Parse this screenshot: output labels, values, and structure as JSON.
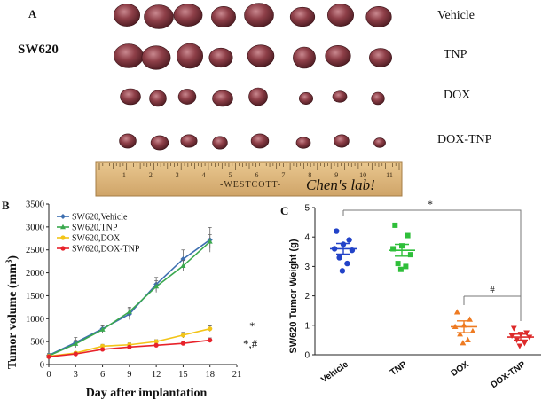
{
  "panel_a": {
    "letter": "A",
    "cell_line": "SW620",
    "groups": [
      "Vehicle",
      "TNP",
      "DOX",
      "DOX-TNP"
    ],
    "tumors_per_group": 8,
    "ruler": {
      "brand": "-WESTCOTT-",
      "handwriting": "Chen's lab!",
      "numbers": [
        "1",
        "2",
        "3",
        "4",
        "5",
        "6",
        "7",
        "8",
        "9",
        "10",
        "11"
      ]
    }
  },
  "panel_b": {
    "letter": "B",
    "legend": [
      "SW620,Vehicle",
      "SW620,TNP",
      "SW620,DOX",
      "SW620,DOX-TNP"
    ],
    "sig_top": "*",
    "sig_bottom": "*,#"
  },
  "panel_c": {
    "letter": "C",
    "sig_top": "*",
    "sig_bottom": "#"
  },
  "chart_data": [
    {
      "type": "line",
      "title": "",
      "xlabel": "Day after implantation",
      "ylabel": "Tumor volume (mm3)",
      "ylabel_main": "Tumor volume (mm",
      "ylabel_sup": "3",
      "ylabel_end": ")",
      "xlim": [
        0,
        21
      ],
      "ylim": [
        0,
        3500
      ],
      "x": [
        0,
        3,
        6,
        9,
        12,
        15,
        18
      ],
      "xticks": [
        0,
        3,
        6,
        9,
        12,
        15,
        18,
        21
      ],
      "yticks": [
        0,
        500,
        1000,
        1500,
        2000,
        2500,
        3000,
        3500
      ],
      "series": [
        {
          "name": "SW620,Vehicle",
          "color": "#3e6fb0",
          "marker": "diamond",
          "values": [
            200,
            480,
            780,
            1100,
            1750,
            2300,
            2720
          ],
          "errors": [
            40,
            110,
            80,
            120,
            150,
            200,
            270
          ]
        },
        {
          "name": "SW620,TNP",
          "color": "#3aa84e",
          "marker": "triangle",
          "values": [
            190,
            450,
            760,
            1150,
            1700,
            2150,
            2680
          ],
          "errors": [
            30,
            80,
            80,
            100,
            130,
            120,
            150
          ]
        },
        {
          "name": "SW620,DOX",
          "color": "#f2c418",
          "marker": "circle",
          "values": [
            180,
            250,
            400,
            430,
            500,
            640,
            780
          ],
          "errors": [
            20,
            30,
            40,
            40,
            40,
            60,
            60
          ]
        },
        {
          "name": "SW620,DOX-TNP",
          "color": "#e8222a",
          "marker": "circle",
          "values": [
            170,
            230,
            330,
            380,
            420,
            460,
            530
          ],
          "errors": [
            20,
            30,
            30,
            30,
            30,
            40,
            50
          ]
        }
      ]
    },
    {
      "type": "scatter",
      "title": "",
      "xlabel": "",
      "ylabel": "SW620 Tumor Weight (g)",
      "ylim": [
        0,
        5
      ],
      "yticks": [
        0,
        1,
        2,
        3,
        4,
        5
      ],
      "categories": [
        "Vehicle",
        "TNP",
        "DOX",
        "DOX-TNP"
      ],
      "series": [
        {
          "name": "Vehicle",
          "color": "#2243c8",
          "marker": "circle",
          "mean": 3.6,
          "sem": 0.18,
          "values": [
            4.2,
            3.9,
            3.75,
            3.6,
            3.55,
            3.3,
            3.1,
            2.85
          ]
        },
        {
          "name": "TNP",
          "color": "#2fbf3a",
          "marker": "square",
          "mean": 3.55,
          "sem": 0.2,
          "values": [
            4.4,
            4.05,
            3.7,
            3.6,
            3.4,
            3.1,
            3.0,
            2.9
          ]
        },
        {
          "name": "DOX",
          "color": "#ee7b22",
          "marker": "triangle",
          "mean": 0.95,
          "sem": 0.2,
          "values": [
            1.45,
            1.2,
            1.0,
            0.95,
            0.8,
            0.7,
            0.5,
            0.4
          ]
        },
        {
          "name": "DOX-TNP",
          "color": "#dd2a2a",
          "marker": "triangle-down",
          "mean": 0.6,
          "sem": 0.1,
          "values": [
            0.9,
            0.75,
            0.7,
            0.65,
            0.6,
            0.5,
            0.4,
            0.3
          ]
        }
      ]
    }
  ]
}
